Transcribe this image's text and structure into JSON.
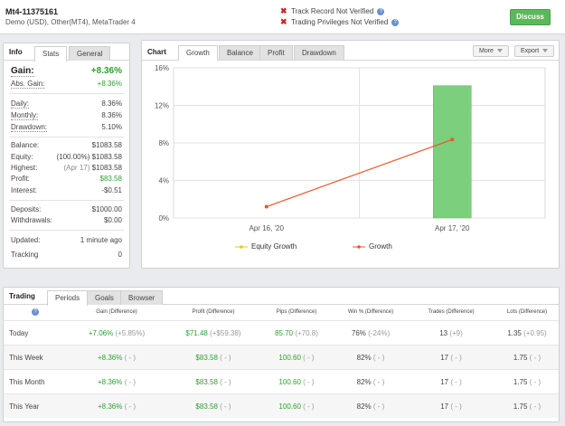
{
  "account": {
    "title": "Mt4-11375161",
    "subtitle": "Demo (USD), Other(MT4), MetaTrader 4"
  },
  "verification": [
    {
      "label": "Track Record Not Verified"
    },
    {
      "label": "Trading Privileges Not Verified"
    }
  ],
  "discuss_label": "Discuss",
  "info": {
    "title": "Info",
    "tabs": [
      "Stats",
      "General"
    ],
    "gain_label": "Gain:",
    "gain_value": "+8.36%",
    "abs_gain_label": "Abs. Gain:",
    "abs_gain_value": "+8.36%",
    "daily_label": "Daily:",
    "daily_value": "8.36%",
    "monthly_label": "Monthly:",
    "monthly_value": "8.36%",
    "drawdown_label": "Drawdown:",
    "drawdown_value": "5.10%",
    "balance_label": "Balance:",
    "balance_value": "$1083.58",
    "equity_label": "Equity:",
    "equity_note": "(100.00%)",
    "equity_value": "$1083.58",
    "highest_label": "Highest:",
    "highest_note": "(Apr 17)",
    "highest_value": "$1083.58",
    "profit_label": "Profit:",
    "profit_value": "$83.58",
    "interest_label": "Interest:",
    "interest_value": "-$0.51",
    "deposits_label": "Deposits:",
    "deposits_value": "$1000.00",
    "withdrawals_label": "Withdrawals:",
    "withdrawals_value": "$0.00",
    "updated_label": "Updated:",
    "updated_value": "1 minute ago",
    "tracking_label": "Tracking",
    "tracking_value": "0"
  },
  "chart": {
    "title": "Chart",
    "tabs": [
      "Growth",
      "Balance",
      "Profit",
      "Drawdown"
    ],
    "more_label": "More",
    "export_label": "Export",
    "legend": [
      "Equity Growth",
      "Growth"
    ]
  },
  "chart_data": {
    "type": "bar",
    "categories": [
      "Apr 16, '20",
      "Apr 17, '20"
    ],
    "y_ticks": [
      "0%",
      "4%",
      "8%",
      "12%",
      "16%"
    ],
    "ylim": [
      0,
      16
    ],
    "series": [
      {
        "name": "Equity Growth",
        "type": "line",
        "values": [
          null,
          null
        ],
        "color": "#f0c419"
      },
      {
        "name": "Growth",
        "type": "line",
        "values": [
          1.2,
          8.36
        ],
        "color": "#e8572a"
      },
      {
        "type": "bar",
        "values": [
          0,
          14.1
        ],
        "color": "#7ccf7c"
      }
    ],
    "grid": true
  },
  "trading": {
    "title": "Trading",
    "tabs": [
      "Periods",
      "Goals",
      "Browser"
    ],
    "columns": [
      "Gain (Difference)",
      "Profit (Difference)",
      "Pips (Difference)",
      "Win % (Difference)",
      "Trades (Difference)",
      "Lots (Difference)"
    ],
    "rows": [
      {
        "period": "Today",
        "gain": "+7.06%",
        "gain_d": "(+5.85%)",
        "profit": "$71.48",
        "profit_d": "(+$59.38)",
        "pips": "85.70",
        "pips_d": "(+70.8)",
        "win": "76%",
        "win_d": "(-24%)",
        "trades": "13",
        "trades_d": "(+9)",
        "lots": "1.35",
        "lots_d": "(+0.95)"
      },
      {
        "period": "This Week",
        "gain": "+8.36%",
        "gain_d": "( - )",
        "profit": "$83.58",
        "profit_d": "( - )",
        "pips": "100.60",
        "pips_d": "( - )",
        "win": "82%",
        "win_d": "( - )",
        "trades": "17",
        "trades_d": "( - )",
        "lots": "1.75",
        "lots_d": "( - )"
      },
      {
        "period": "This Month",
        "gain": "+8.36%",
        "gain_d": "( - )",
        "profit": "$83.58",
        "profit_d": "( - )",
        "pips": "100.60",
        "pips_d": "( - )",
        "win": "82%",
        "win_d": "( - )",
        "trades": "17",
        "trades_d": "( - )",
        "lots": "1.75",
        "lots_d": "( - )"
      },
      {
        "period": "This Year",
        "gain": "+8.36%",
        "gain_d": "( - )",
        "profit": "$83.58",
        "profit_d": "( - )",
        "pips": "100.60",
        "pips_d": "( - )",
        "win": "82%",
        "win_d": "( - )",
        "trades": "17",
        "trades_d": "( - )",
        "lots": "1.75",
        "lots_d": "( - )"
      }
    ]
  }
}
